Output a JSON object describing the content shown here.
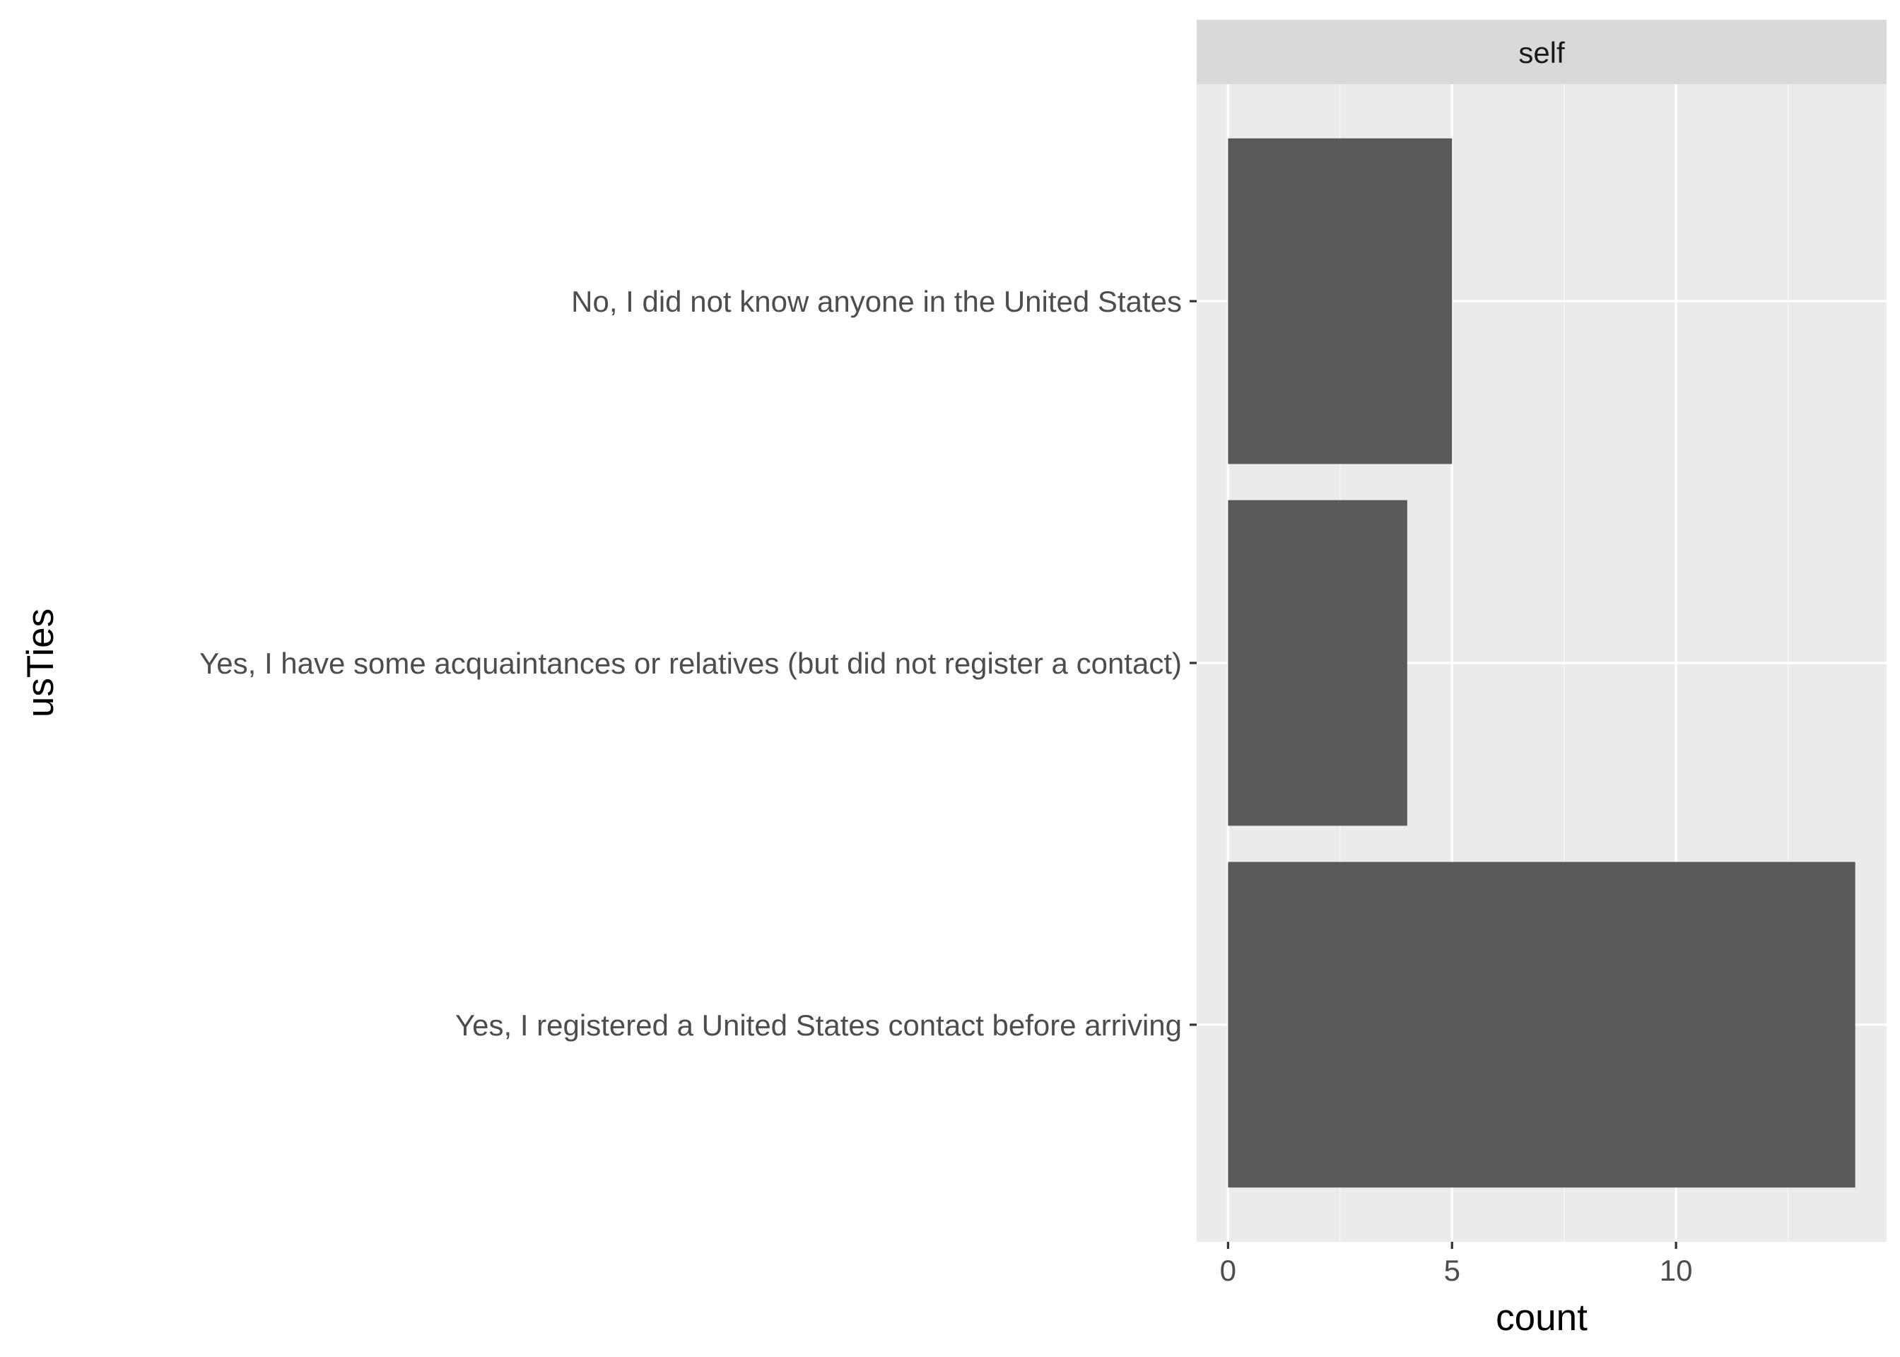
{
  "chart_data": {
    "type": "bar",
    "orientation": "horizontal",
    "facet_label": "self",
    "categories": [
      "No, I did not know anyone in the United States",
      "Yes, I have some acquaintances or relatives (but did not register a contact)",
      "Yes, I registered a United States contact before arriving"
    ],
    "values": [
      5,
      4,
      14
    ],
    "xlabel": "count",
    "ylabel": "usTies",
    "xlim": [
      -0.7,
      14.7
    ],
    "x_ticks": [
      0,
      5,
      10
    ],
    "x_minor_ticks": [
      2.5,
      7.5,
      12.5
    ],
    "grid": true,
    "colors": {
      "bar": "#595959",
      "panel_background": "#ebebeb",
      "strip_background": "#d9d9d9",
      "grid_major": "#ffffff",
      "grid_minor": "#f5f5f5",
      "tick": "#333333"
    }
  }
}
